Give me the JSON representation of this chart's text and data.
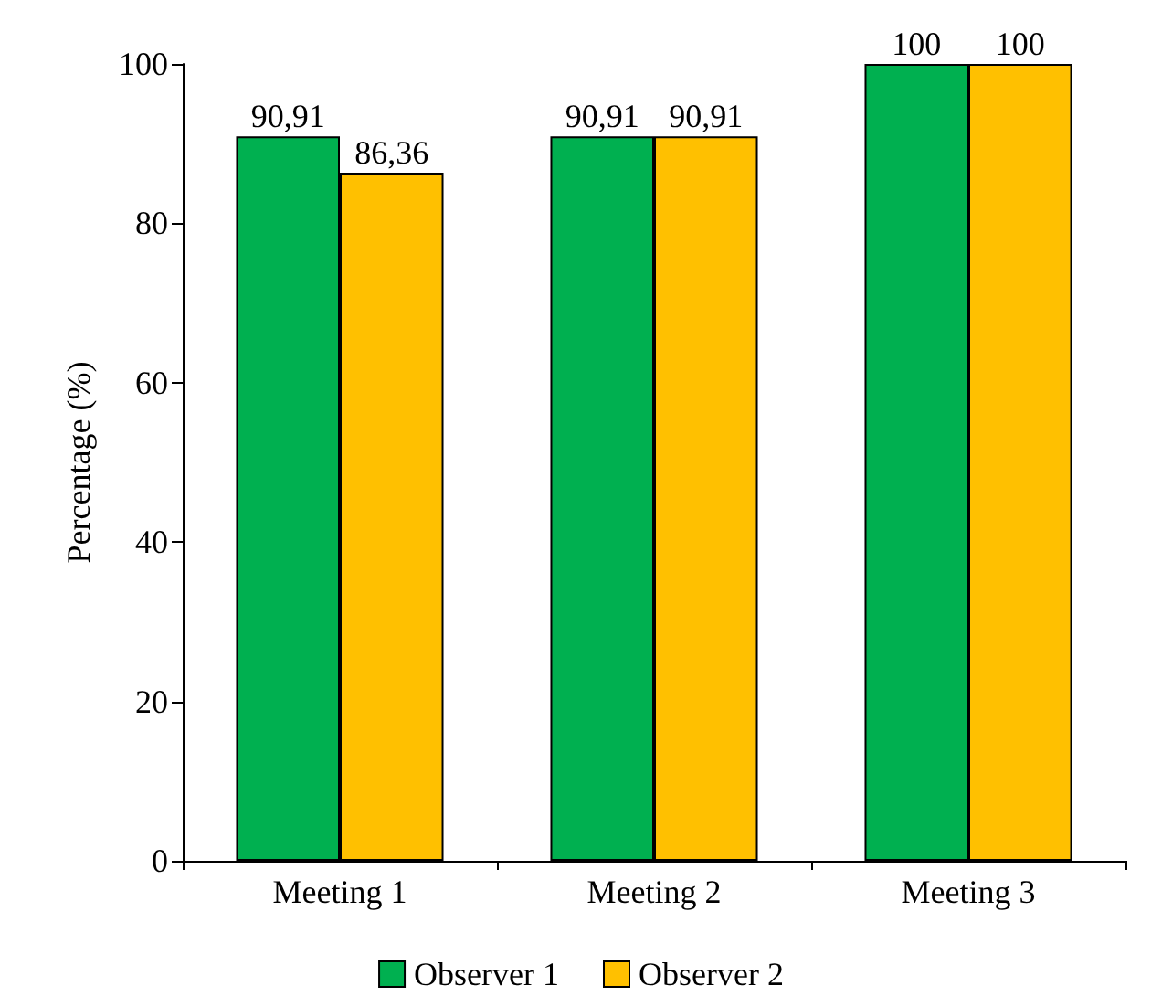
{
  "chart_data": {
    "type": "bar",
    "ylabel": "Percentage (%)",
    "categories": [
      "Meeting 1",
      "Meeting 2",
      "Meeting 3"
    ],
    "series": [
      {
        "name": "Observer 1",
        "color": "#00b050",
        "values": [
          90.91,
          90.91,
          100
        ],
        "value_labels": [
          "90,91",
          "90,91",
          "100"
        ]
      },
      {
        "name": "Observer 2",
        "color": "#ffc000",
        "values": [
          86.36,
          90.91,
          100
        ],
        "value_labels": [
          "86,36",
          "90,91",
          "100"
        ]
      }
    ],
    "ylim": [
      0,
      100
    ],
    "yticks": [
      0,
      20,
      40,
      60,
      80,
      100
    ],
    "grid": false,
    "legend": "bottom"
  }
}
